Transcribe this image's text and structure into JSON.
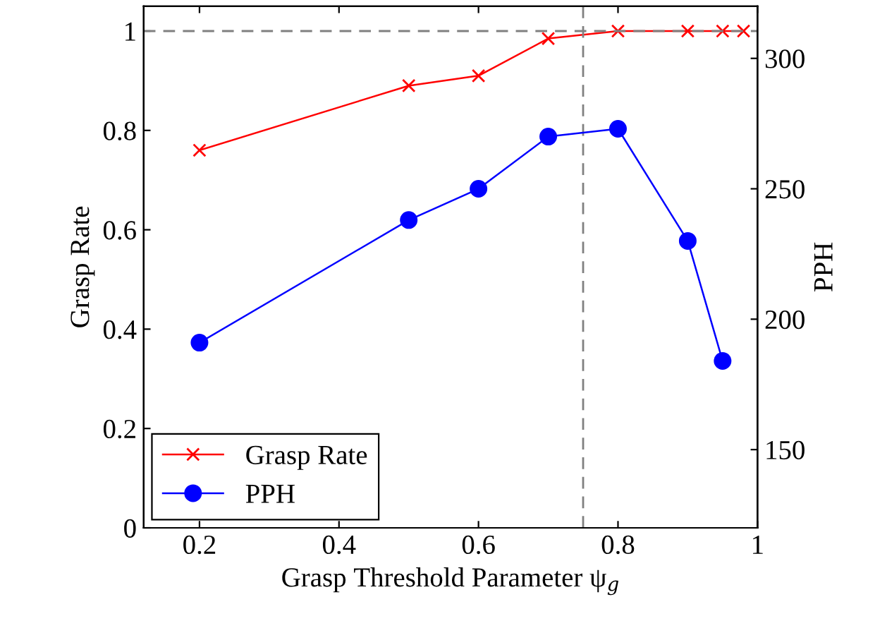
{
  "chart_data": {
    "type": "line",
    "xlabel": "Grasp Threshold Parameter ψ$_{g}$",
    "ylabel": "Grasp Rate",
    "y2label": "PPH",
    "x": [
      0.2,
      0.5,
      0.6,
      0.7,
      0.8,
      0.9,
      0.95,
      0.98
    ],
    "series": [
      {
        "name": "Grasp Rate",
        "color": "#ff0000",
        "marker": "cross",
        "values": [
          0.76,
          0.89,
          0.91,
          0.985,
          1,
          1,
          1,
          1
        ]
      },
      {
        "name": "PPH",
        "color": "#0000ff",
        "marker": "circle",
        "axis": "y2",
        "values": [
          191,
          238,
          250,
          270,
          273,
          230,
          184,
          null
        ]
      }
    ],
    "xlim": [
      0.12,
      1
    ],
    "xticks": [
      0.2,
      0.4,
      0.6,
      0.8,
      1
    ],
    "ylim": [
      0,
      1.05
    ],
    "yticks": [
      0,
      0.2,
      0.4,
      0.6,
      0.8,
      1
    ],
    "y2lim": [
      120,
      320
    ],
    "y2ticks": [
      150,
      200,
      250,
      300
    ],
    "ref_lines": [
      {
        "axis": "y",
        "value": 1,
        "color": "#808080",
        "line_style": "dashed"
      },
      {
        "axis": "x",
        "value": 0.75,
        "color": "#808080",
        "line_style": "dashed"
      }
    ],
    "legend": "bottom left",
    "grid": false,
    "line_style": "solid"
  }
}
